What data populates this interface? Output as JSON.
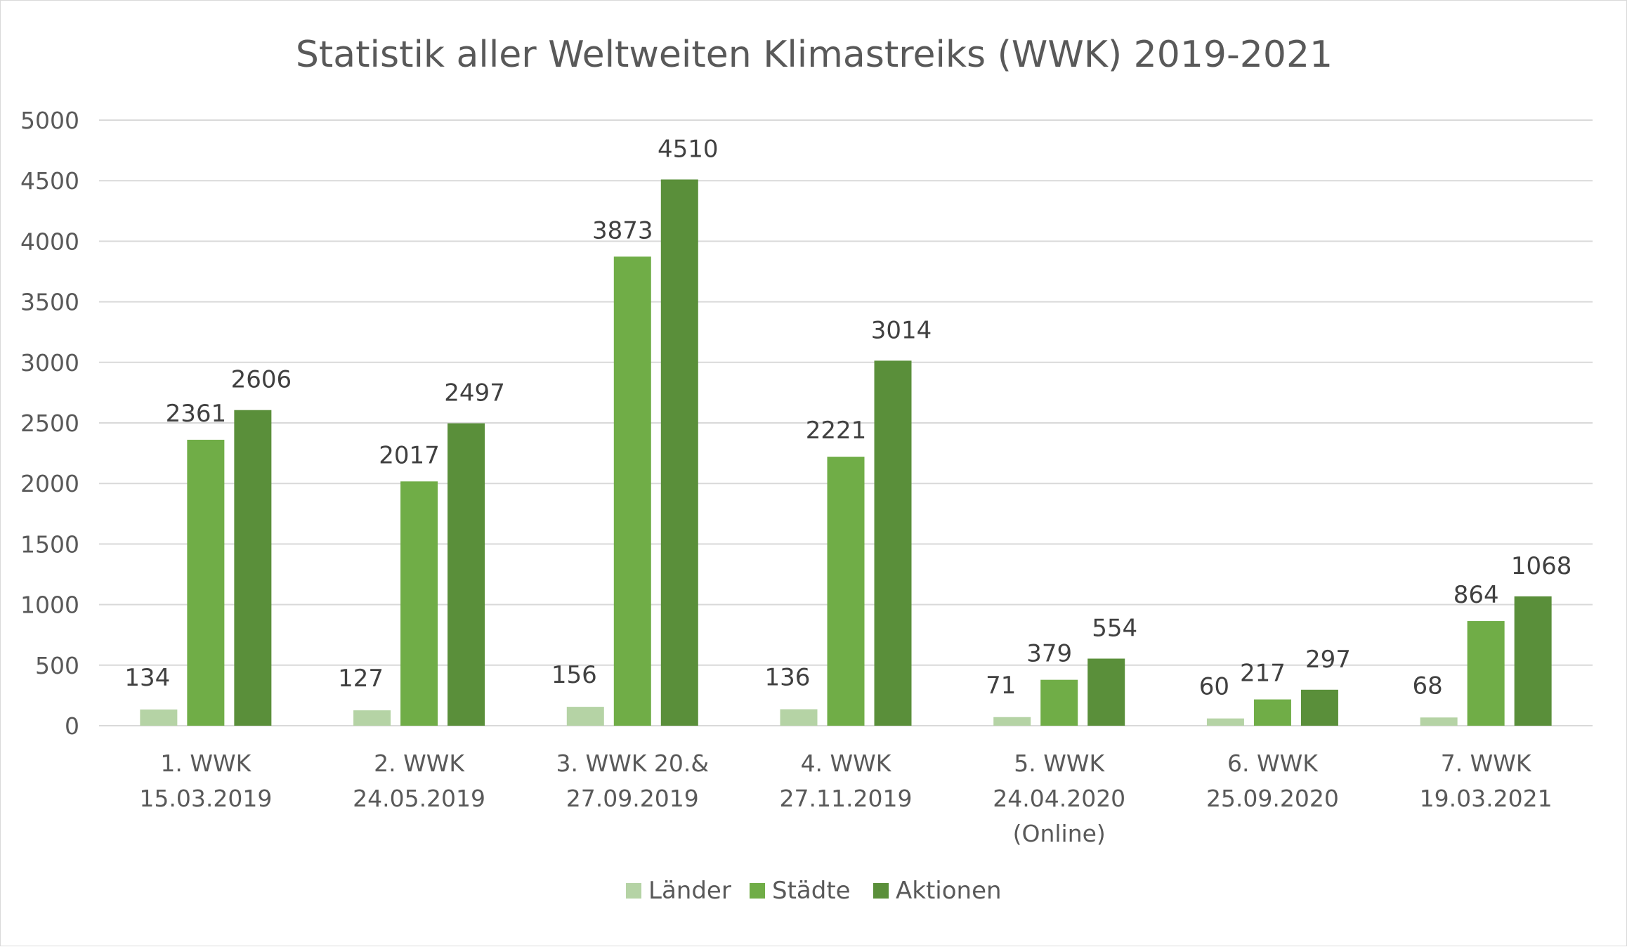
{
  "chart_data": {
    "type": "bar",
    "title": "Statistik aller Weltweiten Klimastreiks (WWK) 2019-2021",
    "xlabel": "",
    "ylabel": "",
    "ylim": [
      0,
      5000
    ],
    "yticks": [
      0,
      500,
      1000,
      1500,
      2000,
      2500,
      3000,
      3500,
      4000,
      4500,
      5000
    ],
    "grid": true,
    "legend_position": "bottom",
    "categories": [
      [
        "1. WWK",
        "15.03.2019"
      ],
      [
        "2. WWK",
        "24.05.2019"
      ],
      [
        "3. WWK 20.&",
        "27.09.2019"
      ],
      [
        "4. WWK",
        "27.11.2019"
      ],
      [
        "5. WWK",
        "24.04.2020",
        "(Online)"
      ],
      [
        "6. WWK",
        "25.09.2020"
      ],
      [
        "7. WWK",
        "19.03.2021"
      ]
    ],
    "series": [
      {
        "name": "Länder",
        "color": "#b5d3a5",
        "values": [
          134,
          127,
          156,
          136,
          71,
          60,
          68
        ]
      },
      {
        "name": "Städte",
        "color": "#70ad47",
        "values": [
          2361,
          2017,
          3873,
          2221,
          379,
          217,
          864
        ]
      },
      {
        "name": "Aktionen",
        "color": "#5a8f3a",
        "values": [
          2606,
          2497,
          4510,
          3014,
          554,
          297,
          1068
        ]
      }
    ]
  }
}
